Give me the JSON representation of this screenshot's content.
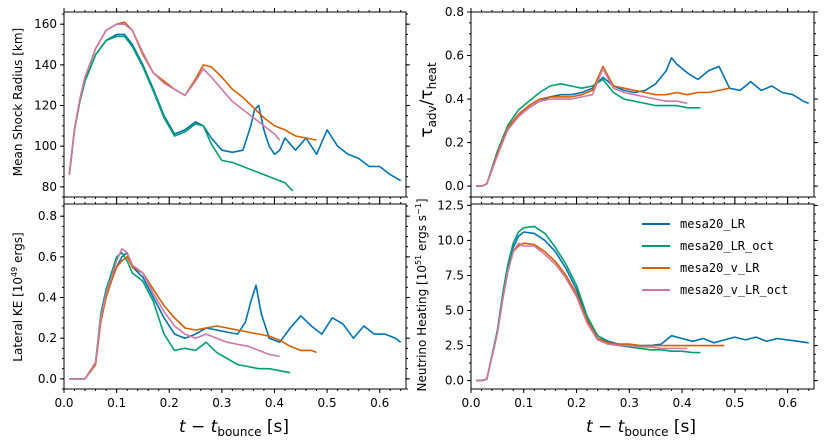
{
  "colors": {
    "mesa20_LR": "#0072b2",
    "mesa20_LR_oct": "#009e73",
    "mesa20_v_LR": "#d55e00",
    "mesa20_v_LR_oct": "#cc79a7"
  },
  "legend": {
    "placement": "upper-right of lower-right panel",
    "entries": [
      "mesa20_LR",
      "mesa20_LR_oct",
      "mesa20_v_LR",
      "mesa20_v_LR_oct"
    ]
  },
  "x_axis": {
    "label_main": "t − t",
    "label_sub": "bounce",
    "label_unit": " [s]",
    "ticks": [
      "0.0",
      "0.1",
      "0.2",
      "0.3",
      "0.4",
      "0.5",
      "0.6"
    ],
    "xlim": [
      0.0,
      0.65
    ]
  },
  "chart_data": [
    {
      "type": "line",
      "panel": "top-left",
      "ylabel": "Mean Shock Radius [km]",
      "ylim": [
        75,
        166
      ],
      "yticks": [
        "80",
        "100",
        "120",
        "140",
        "160"
      ],
      "series": [
        {
          "name": "mesa20_LR",
          "x": [
            0.01,
            0.02,
            0.03,
            0.04,
            0.06,
            0.08,
            0.1,
            0.115,
            0.13,
            0.15,
            0.17,
            0.19,
            0.21,
            0.23,
            0.25,
            0.265,
            0.28,
            0.3,
            0.32,
            0.34,
            0.355,
            0.362,
            0.37,
            0.38,
            0.39,
            0.4,
            0.41,
            0.42,
            0.44,
            0.46,
            0.48,
            0.5,
            0.52,
            0.54,
            0.56,
            0.58,
            0.6,
            0.62,
            0.64
          ],
          "y": [
            86,
            108,
            122,
            132,
            145,
            152,
            155,
            155,
            150,
            140,
            128,
            115,
            106,
            108,
            112,
            110,
            104,
            98,
            97,
            98,
            110,
            118,
            120,
            108,
            100,
            96,
            98,
            104,
            98,
            104,
            96,
            108,
            100,
            96,
            94,
            90,
            90,
            86,
            83
          ]
        },
        {
          "name": "mesa20_LR_oct",
          "x": [
            0.01,
            0.02,
            0.03,
            0.04,
            0.06,
            0.08,
            0.1,
            0.115,
            0.13,
            0.15,
            0.17,
            0.19,
            0.21,
            0.23,
            0.25,
            0.265,
            0.28,
            0.3,
            0.32,
            0.34,
            0.36,
            0.38,
            0.4,
            0.42,
            0.435
          ],
          "y": [
            86,
            108,
            122,
            132,
            145,
            152,
            154,
            154,
            149,
            139,
            127,
            114,
            105,
            107,
            111,
            110,
            101,
            93,
            92,
            90,
            88,
            86,
            84,
            82,
            78
          ]
        },
        {
          "name": "mesa20_v_LR",
          "x": [
            0.01,
            0.02,
            0.03,
            0.04,
            0.06,
            0.08,
            0.1,
            0.115,
            0.13,
            0.15,
            0.17,
            0.19,
            0.21,
            0.23,
            0.25,
            0.265,
            0.28,
            0.3,
            0.32,
            0.34,
            0.36,
            0.38,
            0.4,
            0.42,
            0.44,
            0.46,
            0.48
          ],
          "y": [
            86,
            108,
            123,
            134,
            148,
            157,
            160,
            161,
            157,
            145,
            136,
            132,
            128,
            125,
            133,
            140,
            139,
            134,
            128,
            124,
            119,
            114,
            110,
            108,
            105,
            104,
            103
          ]
        },
        {
          "name": "mesa20_v_LR_oct",
          "x": [
            0.01,
            0.02,
            0.03,
            0.04,
            0.06,
            0.08,
            0.1,
            0.115,
            0.13,
            0.15,
            0.17,
            0.19,
            0.21,
            0.23,
            0.25,
            0.265,
            0.28,
            0.3,
            0.32,
            0.34,
            0.36,
            0.38,
            0.4,
            0.41
          ],
          "y": [
            86,
            108,
            123,
            134,
            148,
            157,
            160,
            160,
            157,
            146,
            136,
            131,
            128,
            125,
            132,
            138,
            134,
            128,
            122,
            118,
            114,
            110,
            106,
            103
          ]
        }
      ]
    },
    {
      "type": "line",
      "panel": "top-right",
      "ylabel_main": "τ",
      "ylabel_sub1": "adv",
      "ylabel_mid": "/τ",
      "ylabel_sub2": "heat",
      "ylim": [
        -0.05,
        0.8
      ],
      "yticks": [
        "0.0",
        "0.2",
        "0.4",
        "0.6",
        "0.8"
      ],
      "series": [
        {
          "name": "mesa20_LR",
          "x": [
            0.01,
            0.02,
            0.03,
            0.05,
            0.07,
            0.09,
            0.11,
            0.13,
            0.15,
            0.17,
            0.19,
            0.21,
            0.23,
            0.25,
            0.27,
            0.29,
            0.31,
            0.33,
            0.35,
            0.37,
            0.38,
            0.39,
            0.41,
            0.43,
            0.45,
            0.47,
            0.49,
            0.51,
            0.53,
            0.55,
            0.57,
            0.59,
            0.61,
            0.63,
            0.64
          ],
          "y": [
            0.0,
            0.0,
            0.01,
            0.15,
            0.26,
            0.32,
            0.36,
            0.39,
            0.41,
            0.42,
            0.42,
            0.43,
            0.45,
            0.5,
            0.46,
            0.44,
            0.43,
            0.44,
            0.47,
            0.53,
            0.59,
            0.56,
            0.52,
            0.49,
            0.53,
            0.55,
            0.45,
            0.44,
            0.48,
            0.44,
            0.46,
            0.43,
            0.42,
            0.39,
            0.38
          ]
        },
        {
          "name": "mesa20_LR_oct",
          "x": [
            0.01,
            0.02,
            0.03,
            0.05,
            0.07,
            0.09,
            0.11,
            0.13,
            0.15,
            0.17,
            0.19,
            0.21,
            0.23,
            0.25,
            0.27,
            0.29,
            0.31,
            0.33,
            0.35,
            0.37,
            0.39,
            0.41,
            0.435
          ],
          "y": [
            0.0,
            0.0,
            0.01,
            0.16,
            0.28,
            0.35,
            0.39,
            0.43,
            0.46,
            0.47,
            0.46,
            0.45,
            0.46,
            0.49,
            0.43,
            0.4,
            0.39,
            0.38,
            0.37,
            0.37,
            0.37,
            0.36,
            0.36
          ]
        },
        {
          "name": "mesa20_v_LR",
          "x": [
            0.01,
            0.02,
            0.03,
            0.05,
            0.07,
            0.09,
            0.11,
            0.13,
            0.15,
            0.17,
            0.19,
            0.21,
            0.23,
            0.25,
            0.27,
            0.29,
            0.31,
            0.33,
            0.35,
            0.37,
            0.39,
            0.41,
            0.43,
            0.45,
            0.47,
            0.49
          ],
          "y": [
            0.0,
            0.0,
            0.01,
            0.15,
            0.27,
            0.33,
            0.37,
            0.4,
            0.41,
            0.41,
            0.41,
            0.42,
            0.44,
            0.55,
            0.46,
            0.45,
            0.44,
            0.43,
            0.42,
            0.42,
            0.43,
            0.42,
            0.43,
            0.43,
            0.44,
            0.45
          ]
        },
        {
          "name": "mesa20_v_LR_oct",
          "x": [
            0.01,
            0.02,
            0.03,
            0.05,
            0.07,
            0.09,
            0.11,
            0.13,
            0.15,
            0.17,
            0.19,
            0.21,
            0.23,
            0.25,
            0.27,
            0.29,
            0.31,
            0.33,
            0.35,
            0.37,
            0.39,
            0.41
          ],
          "y": [
            0.0,
            0.0,
            0.01,
            0.14,
            0.26,
            0.32,
            0.36,
            0.39,
            0.4,
            0.4,
            0.4,
            0.41,
            0.42,
            0.54,
            0.45,
            0.43,
            0.42,
            0.41,
            0.4,
            0.39,
            0.39,
            0.38
          ]
        }
      ]
    },
    {
      "type": "line",
      "panel": "bottom-left",
      "ylabel_pre": "Lateral KE [10",
      "ylabel_sup": "49",
      "ylabel_post": " ergs]",
      "ylim": [
        -0.05,
        0.86
      ],
      "yticks": [
        "0.0",
        "0.2",
        "0.4",
        "0.6",
        "0.8"
      ],
      "series": [
        {
          "name": "mesa20_LR",
          "x": [
            0.01,
            0.02,
            0.04,
            0.06,
            0.07,
            0.08,
            0.09,
            0.1,
            0.11,
            0.12,
            0.13,
            0.15,
            0.17,
            0.19,
            0.21,
            0.23,
            0.25,
            0.27,
            0.29,
            0.31,
            0.33,
            0.345,
            0.355,
            0.365,
            0.375,
            0.39,
            0.41,
            0.43,
            0.45,
            0.47,
            0.49,
            0.51,
            0.53,
            0.55,
            0.57,
            0.59,
            0.61,
            0.63,
            0.64
          ],
          "y": [
            0.0,
            0.0,
            0.0,
            0.08,
            0.3,
            0.42,
            0.5,
            0.55,
            0.6,
            0.62,
            0.55,
            0.5,
            0.4,
            0.3,
            0.22,
            0.2,
            0.22,
            0.25,
            0.24,
            0.23,
            0.22,
            0.28,
            0.38,
            0.46,
            0.32,
            0.2,
            0.18,
            0.25,
            0.31,
            0.26,
            0.22,
            0.3,
            0.27,
            0.2,
            0.26,
            0.22,
            0.22,
            0.2,
            0.18
          ]
        },
        {
          "name": "mesa20_LR_oct",
          "x": [
            0.01,
            0.02,
            0.04,
            0.06,
            0.07,
            0.08,
            0.09,
            0.1,
            0.11,
            0.12,
            0.13,
            0.15,
            0.17,
            0.19,
            0.21,
            0.23,
            0.25,
            0.27,
            0.29,
            0.31,
            0.33,
            0.35,
            0.37,
            0.39,
            0.41,
            0.43
          ],
          "y": [
            0.0,
            0.0,
            0.0,
            0.08,
            0.32,
            0.44,
            0.52,
            0.6,
            0.62,
            0.58,
            0.52,
            0.48,
            0.38,
            0.22,
            0.14,
            0.15,
            0.14,
            0.18,
            0.13,
            0.1,
            0.07,
            0.06,
            0.05,
            0.05,
            0.04,
            0.03
          ]
        },
        {
          "name": "mesa20_v_LR",
          "x": [
            0.01,
            0.02,
            0.04,
            0.06,
            0.07,
            0.08,
            0.09,
            0.1,
            0.11,
            0.12,
            0.13,
            0.15,
            0.17,
            0.19,
            0.21,
            0.23,
            0.25,
            0.27,
            0.29,
            0.31,
            0.33,
            0.35,
            0.37,
            0.39,
            0.41,
            0.43,
            0.45,
            0.47,
            0.48
          ],
          "y": [
            0.0,
            0.0,
            0.0,
            0.07,
            0.28,
            0.4,
            0.48,
            0.55,
            0.58,
            0.6,
            0.55,
            0.52,
            0.44,
            0.36,
            0.3,
            0.25,
            0.24,
            0.25,
            0.26,
            0.25,
            0.24,
            0.23,
            0.22,
            0.21,
            0.19,
            0.16,
            0.14,
            0.14,
            0.13
          ]
        },
        {
          "name": "mesa20_v_LR_oct",
          "x": [
            0.01,
            0.02,
            0.04,
            0.06,
            0.07,
            0.08,
            0.09,
            0.1,
            0.11,
            0.12,
            0.13,
            0.15,
            0.17,
            0.19,
            0.21,
            0.23,
            0.25,
            0.27,
            0.29,
            0.31,
            0.33,
            0.35,
            0.37,
            0.39,
            0.41
          ],
          "y": [
            0.0,
            0.0,
            0.0,
            0.08,
            0.3,
            0.42,
            0.5,
            0.58,
            0.64,
            0.62,
            0.56,
            0.52,
            0.42,
            0.33,
            0.26,
            0.22,
            0.2,
            0.22,
            0.2,
            0.18,
            0.17,
            0.16,
            0.14,
            0.12,
            0.11
          ]
        }
      ]
    },
    {
      "type": "line",
      "panel": "bottom-right",
      "ylabel_pre": "Neutrino Heating [10",
      "ylabel_sup": "51",
      "ylabel_post": " ergs s",
      "ylabel_sup2": "−1",
      "ylabel_end": "]",
      "ylim": [
        -0.6,
        12.6
      ],
      "yticks": [
        "0.0",
        "2.5",
        "5.0",
        "7.5",
        "10.0",
        "12.5"
      ],
      "series": [
        {
          "name": "mesa20_LR",
          "x": [
            0.01,
            0.02,
            0.03,
            0.05,
            0.06,
            0.07,
            0.08,
            0.09,
            0.1,
            0.12,
            0.14,
            0.16,
            0.18,
            0.2,
            0.22,
            0.24,
            0.26,
            0.28,
            0.3,
            0.32,
            0.34,
            0.36,
            0.38,
            0.4,
            0.42,
            0.44,
            0.46,
            0.48,
            0.5,
            0.52,
            0.54,
            0.56,
            0.58,
            0.6,
            0.62,
            0.64
          ],
          "y": [
            0.0,
            0.0,
            0.1,
            3.5,
            6.0,
            8.0,
            9.5,
            10.3,
            10.6,
            10.5,
            10.0,
            9.2,
            8.0,
            6.5,
            4.5,
            3.2,
            2.8,
            2.6,
            2.6,
            2.5,
            2.5,
            2.6,
            3.2,
            3.0,
            2.8,
            3.0,
            2.7,
            2.9,
            3.1,
            2.9,
            3.1,
            2.8,
            3.0,
            2.9,
            2.8,
            2.7
          ]
        },
        {
          "name": "mesa20_LR_oct",
          "x": [
            0.01,
            0.02,
            0.03,
            0.05,
            0.06,
            0.07,
            0.08,
            0.09,
            0.1,
            0.12,
            0.14,
            0.16,
            0.18,
            0.2,
            0.22,
            0.24,
            0.26,
            0.28,
            0.3,
            0.32,
            0.34,
            0.36,
            0.38,
            0.4,
            0.42,
            0.435
          ],
          "y": [
            0.0,
            0.0,
            0.1,
            3.6,
            6.2,
            8.3,
            9.8,
            10.6,
            10.9,
            11.0,
            10.5,
            9.5,
            8.3,
            6.8,
            4.6,
            3.2,
            2.7,
            2.5,
            2.4,
            2.3,
            2.2,
            2.2,
            2.1,
            2.1,
            2.0,
            2.0
          ]
        },
        {
          "name": "mesa20_v_LR",
          "x": [
            0.01,
            0.02,
            0.03,
            0.05,
            0.06,
            0.07,
            0.08,
            0.09,
            0.1,
            0.12,
            0.14,
            0.16,
            0.18,
            0.2,
            0.22,
            0.24,
            0.26,
            0.28,
            0.3,
            0.32,
            0.34,
            0.36,
            0.38,
            0.4,
            0.42,
            0.44,
            0.46,
            0.48
          ],
          "y": [
            0.0,
            0.0,
            0.1,
            3.4,
            5.8,
            7.8,
            9.2,
            9.6,
            9.8,
            9.7,
            9.2,
            8.5,
            7.5,
            6.2,
            4.3,
            3.0,
            2.7,
            2.6,
            2.6,
            2.5,
            2.5,
            2.5,
            2.5,
            2.5,
            2.5,
            2.5,
            2.5,
            2.5
          ]
        },
        {
          "name": "mesa20_v_LR_oct",
          "x": [
            0.01,
            0.02,
            0.03,
            0.05,
            0.06,
            0.07,
            0.08,
            0.09,
            0.1,
            0.12,
            0.14,
            0.16,
            0.18,
            0.2,
            0.22,
            0.24,
            0.26,
            0.28,
            0.3,
            0.32,
            0.34,
            0.36,
            0.38,
            0.4,
            0.41
          ],
          "y": [
            0.0,
            0.0,
            0.1,
            3.4,
            5.8,
            7.8,
            9.2,
            9.8,
            9.6,
            9.6,
            9.0,
            8.3,
            7.3,
            6.0,
            4.1,
            2.9,
            2.6,
            2.5,
            2.5,
            2.4,
            2.4,
            2.3,
            2.3,
            2.3,
            2.3
          ]
        }
      ]
    }
  ]
}
